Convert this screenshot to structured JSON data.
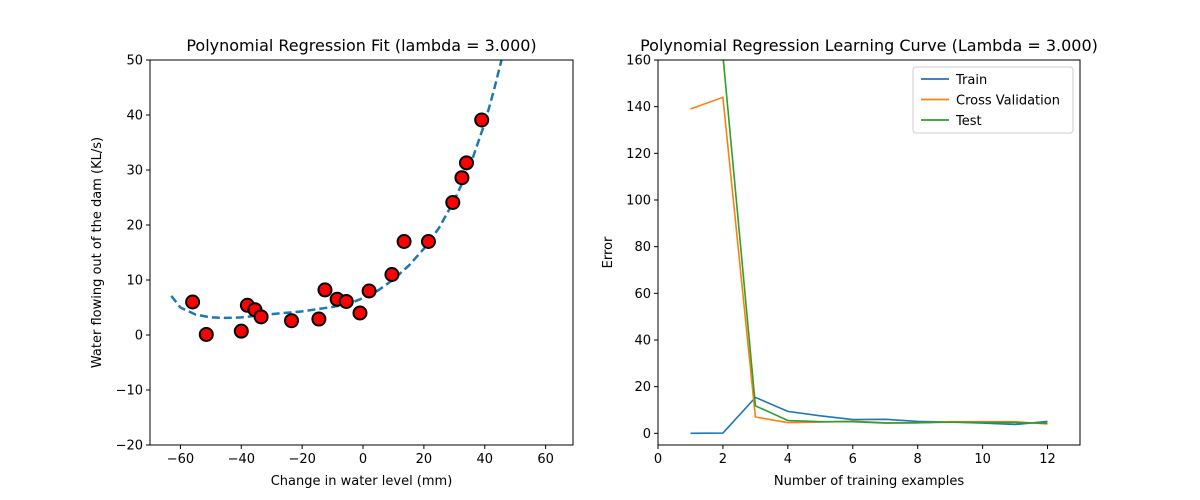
{
  "chart_data": [
    {
      "type": "scatter",
      "title": "Polynomial Regression Fit (lambda = 3.000)",
      "xlabel": "Change in water level (mm)",
      "ylabel": "Water flowing out of the dam (KL/s)",
      "xlim": [
        -70,
        69
      ],
      "ylim": [
        -20,
        50
      ],
      "xticks": [
        -60,
        -40,
        -20,
        0,
        20,
        40,
        60
      ],
      "yticks": [
        -20,
        -10,
        0,
        10,
        20,
        30,
        40,
        50
      ],
      "xtick_labels": [
        "−60",
        "−40",
        "−20",
        "0",
        "20",
        "40",
        "60"
      ],
      "ytick_labels": [
        "−20",
        "−10",
        "0",
        "10",
        "20",
        "30",
        "40",
        "50"
      ],
      "points": [
        {
          "x": -56,
          "y": 6
        },
        {
          "x": -51.5,
          "y": 0.1
        },
        {
          "x": -40,
          "y": 0.7
        },
        {
          "x": -38,
          "y": 5.4
        },
        {
          "x": -35.5,
          "y": 4.6
        },
        {
          "x": -33.5,
          "y": 3.3
        },
        {
          "x": -23.5,
          "y": 2.6
        },
        {
          "x": -14.5,
          "y": 2.9
        },
        {
          "x": -12.5,
          "y": 8.2
        },
        {
          "x": -8.5,
          "y": 6.5
        },
        {
          "x": -5.5,
          "y": 6.1
        },
        {
          "x": -1,
          "y": 4
        },
        {
          "x": 2,
          "y": 8
        },
        {
          "x": 9.5,
          "y": 11
        },
        {
          "x": 13.5,
          "y": 17
        },
        {
          "x": 21.5,
          "y": 17
        },
        {
          "x": 29.5,
          "y": 24.1
        },
        {
          "x": 32.5,
          "y": 28.6
        },
        {
          "x": 34,
          "y": 31.3
        },
        {
          "x": 39,
          "y": 39.1
        }
      ],
      "fit_curve": {
        "style": "dashed",
        "points": [
          [
            -63,
            7.1
          ],
          [
            -60,
            5
          ],
          [
            -55,
            3.7
          ],
          [
            -50,
            3.2
          ],
          [
            -45,
            3.1
          ],
          [
            -40,
            3.2
          ],
          [
            -30,
            3.8
          ],
          [
            -20,
            4.3
          ],
          [
            -10,
            5.1
          ],
          [
            -5,
            5.6
          ],
          [
            0,
            6.7
          ],
          [
            5,
            8.1
          ],
          [
            10,
            10.1
          ],
          [
            15,
            12.6
          ],
          [
            20,
            15.7
          ],
          [
            25,
            19.5
          ],
          [
            30,
            24.5
          ],
          [
            35,
            30.5
          ],
          [
            40,
            38.5
          ],
          [
            43,
            44.5
          ],
          [
            45.5,
            50
          ]
        ]
      },
      "colors": {
        "marker_fill": "#ff0000",
        "marker_edge": "#000000",
        "fit_line": "#1f77b4"
      }
    },
    {
      "type": "line",
      "title": "Polynomial Regression Learning Curve (Lambda = 3.000)",
      "xlabel": "Number of training examples",
      "ylabel": "Error",
      "xlim": [
        0,
        13
      ],
      "ylim": [
        -5,
        160
      ],
      "xticks": [
        0,
        2,
        4,
        6,
        8,
        10,
        12
      ],
      "yticks": [
        0,
        20,
        40,
        60,
        80,
        100,
        120,
        140,
        160
      ],
      "legend_position": "top-right",
      "x": [
        1,
        2,
        3,
        4,
        5,
        6,
        7,
        8,
        9,
        10,
        11,
        12
      ],
      "series": [
        {
          "name": "Train",
          "color": "#1f77b4",
          "values": [
            0,
            0.1,
            15.4,
            9.4,
            7.5,
            5.9,
            6,
            5.1,
            4.8,
            4.4,
            3.8,
            5.1
          ]
        },
        {
          "name": "Cross Validation",
          "color": "#ff7f0e",
          "values": [
            139,
            144,
            7,
            4.6,
            4.8,
            5.2,
            4.5,
            4.5,
            5,
            5,
            5,
            4
          ]
        },
        {
          "name": "Test",
          "color": "#2ca02c",
          "values": [
            null,
            162,
            11.8,
            5.5,
            5,
            5,
            4.4,
            4.5,
            4.8,
            4.6,
            4.6,
            4.3
          ]
        }
      ]
    }
  ]
}
